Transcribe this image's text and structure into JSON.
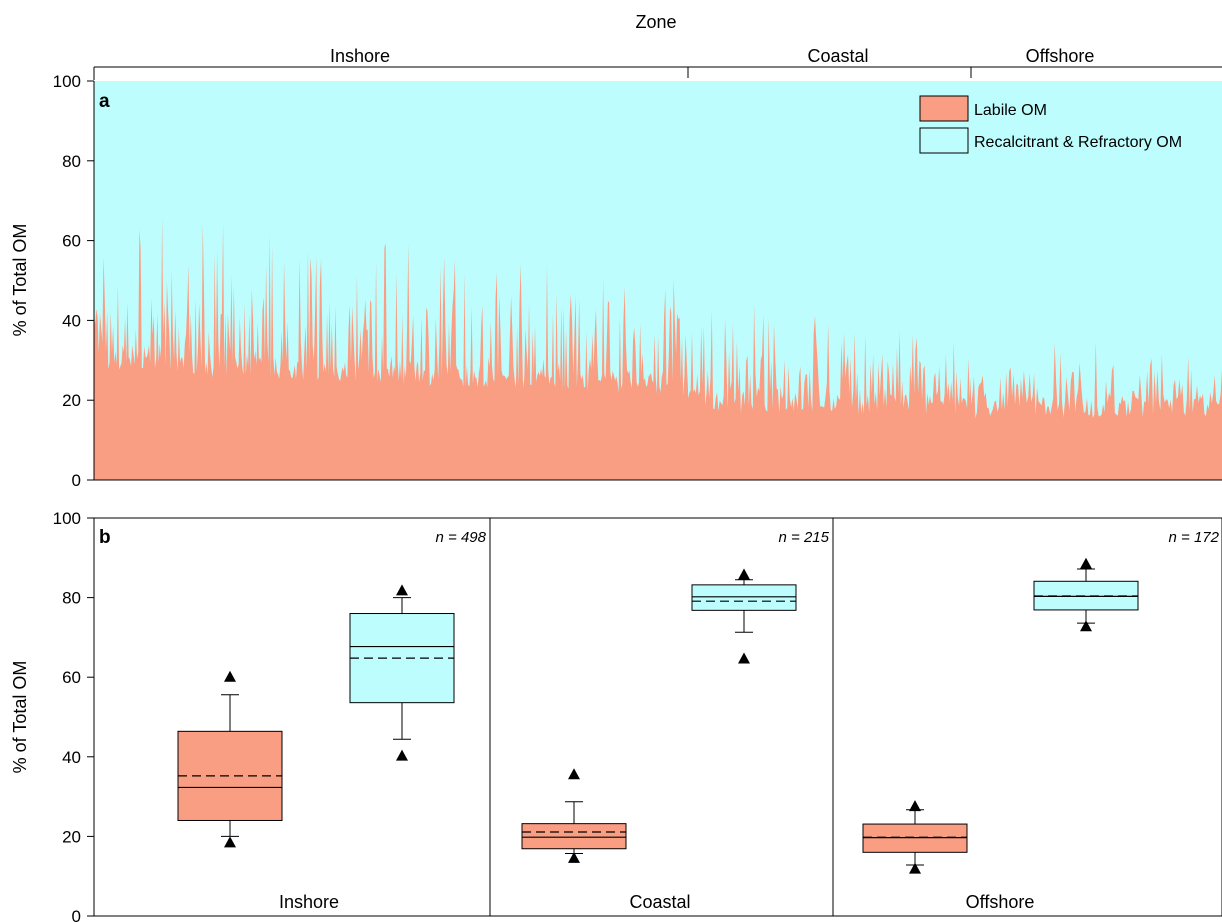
{
  "figure": {
    "zone_axis_title": "Zone",
    "colors": {
      "labile": "#FA9E83",
      "recalcitrant": "#BDFDFE",
      "axis": "#000000"
    }
  },
  "chart_data": [
    {
      "panel": "a",
      "type": "area",
      "stacked": true,
      "ylabel": "% of Total OM",
      "ylim": [
        0,
        100
      ],
      "yticks": [
        0,
        20,
        40,
        60,
        80,
        100
      ],
      "zones": [
        {
          "label": "Inshore",
          "n": 498
        },
        {
          "label": "Coastal",
          "n": 215
        },
        {
          "label": "Offshore",
          "n": 172
        }
      ],
      "legend": {
        "placement": "top-right",
        "entries": [
          {
            "label": "Labile OM",
            "color": "#FA9E83"
          },
          {
            "label": "Recalcitrant & Refractory OM",
            "color": "#BDFDFE"
          }
        ]
      },
      "series": [
        {
          "name": "Labile OM",
          "segments": [
            {
              "zone": "Inshore",
              "count": 498,
              "baseline_start": 30,
              "baseline_end": 24,
              "spike_max": 68
            },
            {
              "zone": "Coastal",
              "count": 215,
              "baseline_start": 20,
              "baseline_end": 19,
              "spike_max": 47
            },
            {
              "zone": "Offshore",
              "count": 172,
              "baseline_start": 18,
              "baseline_end": 19,
              "spike_max": 39
            }
          ]
        },
        {
          "name": "Recalcitrant & Refractory OM",
          "total": 100
        }
      ]
    },
    {
      "panel": "b",
      "type": "box",
      "ylabel": "% of Total OM",
      "ylim": [
        0,
        100
      ],
      "yticks": [
        0,
        20,
        40,
        60,
        80,
        100
      ],
      "groups": [
        {
          "label": "Inshore",
          "n_label": "n = 498",
          "boxes": [
            {
              "series": "Labile OM",
              "q1": 24,
              "median": 32.3,
              "mean": 35.2,
              "q3": 46.4,
              "whisker_low": 20,
              "whisker_high": 55.6,
              "outlier_low": 18.5,
              "outlier_high": 60.1
            },
            {
              "series": "Recalcitrant & Refractory OM",
              "q1": 53.6,
              "median": 67.7,
              "mean": 64.8,
              "q3": 76,
              "whisker_low": 44.4,
              "whisker_high": 80,
              "outlier_low": 40.3,
              "outlier_high": 81.8
            }
          ]
        },
        {
          "label": "Coastal",
          "n_label": "n = 215",
          "boxes": [
            {
              "series": "Labile OM",
              "q1": 16.9,
              "median": 19.8,
              "mean": 21.1,
              "q3": 23.2,
              "whisker_low": 15.7,
              "whisker_high": 28.7,
              "outlier_low": 14.6,
              "outlier_high": 35.6
            },
            {
              "series": "Recalcitrant & Refractory OM",
              "q1": 76.8,
              "median": 80.2,
              "mean": 79.1,
              "q3": 83.2,
              "whisker_low": 71.3,
              "whisker_high": 84.5,
              "outlier_low": 64.7,
              "outlier_high": 85.8
            }
          ]
        },
        {
          "label": "Offshore",
          "n_label": "n = 172",
          "boxes": [
            {
              "series": "Labile OM",
              "q1": 16,
              "median": 19.7,
              "mean": 19.8,
              "q3": 23.1,
              "whisker_low": 12.8,
              "whisker_high": 26.7,
              "outlier_low": 11.9,
              "outlier_high": 27.6
            },
            {
              "series": "Recalcitrant & Refractory OM",
              "q1": 76.9,
              "median": 80.3,
              "mean": 80.4,
              "q3": 84.1,
              "whisker_low": 73.6,
              "whisker_high": 87.2,
              "outlier_low": 72.8,
              "outlier_high": 88.5
            }
          ]
        }
      ]
    }
  ]
}
